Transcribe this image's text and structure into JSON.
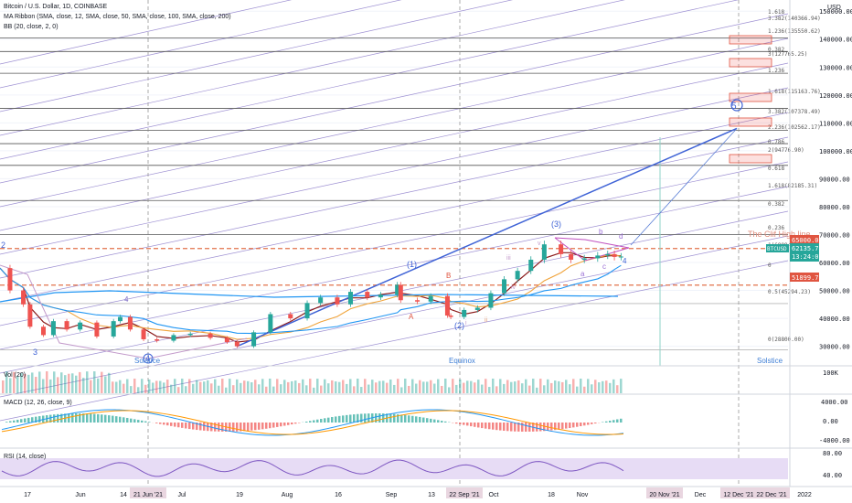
{
  "header": {
    "symbol_title": "Bitcoin / U.S. Dollar, 1D, COINBASE",
    "ma_ribbon": "MA Ribbon (SMA, close, 12, SMA, close, 50, SMA, close, 100, SMA, close, 200)",
    "bb": "BB (20, close, 2, 0)"
  },
  "currency_label": "USD",
  "price_badges": {
    "level_65000": "65000.00",
    "current_price": "62135.78",
    "current_symbol": "BTCUSD",
    "countdown": "13:24:07",
    "level_51899": "51899.78"
  },
  "annotations": {
    "cliff_high_line": "The Clif High line",
    "solstice_left": "Solstice",
    "equinox": "Equinox",
    "solstice_right": "Solstice"
  },
  "elliott_labels": {
    "w1": "(1)",
    "w2": "(2)",
    "w3": "(3)",
    "w4": "4",
    "w5": "5",
    "wA": "A",
    "wB": "B",
    "w2_left": "2",
    "w3_left": "3",
    "w4_left": "4",
    "a": "a",
    "b": "b",
    "c": "c",
    "d": "d",
    "d4": "4",
    "i": "i",
    "ii": "ii",
    "iii": "iii",
    "iv": "iv",
    "v": "v"
  },
  "indicators": {
    "vol": "Vol (20)",
    "vol_axis": "100K",
    "macd": "MACD (12, 26, close, 9)",
    "macd_ticks": [
      "4000.00",
      "0.00",
      "-4000.00"
    ],
    "rsi": "RSI (14, close)",
    "rsi_ticks": [
      "80.00",
      "40.00"
    ]
  },
  "fib_labels": [
    "1.618",
    "3.382(140366.94)",
    "1.236(135550.62)",
    "0.382",
    "3(127765.25)",
    "1.236",
    "1.618(115163.76)",
    "3.382(107378.49)",
    "2.236(102562.17)",
    "0.786",
    "2(94776.90)",
    "0.618",
    "1.618(82185.31)",
    "0.382",
    "0.236",
    "1(69994.51)",
    "0",
    "0.5(45294.23)",
    "0(28800.00)"
  ],
  "x_axis_labels": [
    "17",
    "Jun",
    "14",
    "21 Jun '21",
    "Jul",
    "19",
    "Aug",
    "16",
    "Sep",
    "13",
    "22 Sep '21",
    "Oct",
    "18",
    "Nov",
    "20 Nov '21",
    "Dec",
    "12 Dec '21",
    "22 Dec '21",
    "2022"
  ],
  "colors": {
    "candle_up": "#26a69a",
    "candle_down": "#ef5350",
    "fib_line": "#7e6cc4",
    "trend_blue": "#3f63d6",
    "price_badge": "#26a69a",
    "level_badge": "#e05541",
    "rsi_band": "#e7dcf5"
  },
  "chart_data": {
    "type": "line",
    "title": "Bitcoin / U.S. Dollar, 1D, COINBASE",
    "xlabel": "",
    "ylabel": "USD",
    "ylim": [
      23000,
      154000
    ],
    "y_ticks": [
      30000,
      40000,
      50000,
      60000,
      65000,
      70000,
      80000,
      90000,
      100000,
      110000,
      120000,
      130000,
      140000,
      150000
    ],
    "grid": true,
    "x_start": "2021-05-10",
    "x_end": "2022-01-01",
    "series": [
      {
        "values": [
          [
            "2021-05-10",
            58000
          ],
          [
            "2021-05-13",
            50000
          ],
          [
            "2021-05-17",
            45000
          ],
          [
            "2021-05-19",
            37000
          ],
          [
            "2021-05-23",
            34000
          ],
          [
            "2021-05-26",
            39000
          ],
          [
            "2021-05-30",
            36000
          ],
          [
            "2021-06-03",
            38500
          ],
          [
            "2021-06-08",
            33500
          ],
          [
            "2021-06-13",
            39000
          ],
          [
            "2021-06-15",
            40500
          ],
          [
            "2021-06-18",
            36000
          ],
          [
            "2021-06-22",
            32500
          ],
          [
            "2021-06-26",
            32000
          ],
          [
            "2021-07-01",
            34000
          ],
          [
            "2021-07-06",
            34500
          ],
          [
            "2021-07-12",
            33000
          ],
          [
            "2021-07-17",
            31500
          ],
          [
            "2021-07-20",
            30000
          ],
          [
            "2021-07-25",
            35000
          ],
          [
            "2021-07-30",
            41500
          ],
          [
            "2021-08-05",
            40000
          ],
          [
            "2021-08-10",
            45500
          ],
          [
            "2021-08-14",
            47500
          ],
          [
            "2021-08-19",
            45000
          ],
          [
            "2021-08-23",
            49500
          ],
          [
            "2021-08-28",
            47500
          ],
          [
            "2021-09-01",
            48500
          ],
          [
            "2021-09-06",
            52000
          ],
          [
            "2021-09-07",
            46500
          ],
          [
            "2021-09-12",
            46000
          ],
          [
            "2021-09-16",
            48000
          ],
          [
            "2021-09-21",
            41000
          ],
          [
            "2021-09-22",
            40500
          ],
          [
            "2021-09-26",
            43000
          ],
          [
            "2021-09-30",
            43800
          ],
          [
            "2021-10-04",
            49000
          ],
          [
            "2021-10-08",
            54000
          ],
          [
            "2021-10-12",
            57000
          ],
          [
            "2021-10-16",
            61000
          ],
          [
            "2021-10-20",
            66500
          ],
          [
            "2021-10-25",
            63000
          ],
          [
            "2021-10-28",
            61000
          ],
          [
            "2021-11-01",
            61500
          ],
          [
            "2021-11-05",
            62500
          ],
          [
            "2021-11-08",
            63000
          ],
          [
            "2021-11-10",
            62000
          ],
          [
            "2021-11-12",
            62135.78
          ]
        ]
      }
    ],
    "horizontal_levels": [
      {
        "label": "The Clif High line",
        "value": 65000
      },
      {
        "label": "0.5(45294.23)",
        "value": 45294.23
      },
      {
        "label": "0(28800.00)",
        "value": 28800
      },
      {
        "label": "51899.78",
        "value": 51899.78
      }
    ],
    "fib_levels": [
      {
        "label": "3.382(140366.94)",
        "value": 140366.94
      },
      {
        "label": "1.236(135550.62)",
        "value": 135550.62
      },
      {
        "label": "3(127765.25)",
        "value": 127765.25
      },
      {
        "label": "1.618(115163.76)",
        "value": 115163.76
      },
      {
        "label": "3.382(107378.49)",
        "value": 107378.49
      },
      {
        "label": "2.236(102562.17)",
        "value": 102562.17
      },
      {
        "label": "2(94776.90)",
        "value": 94776.9
      },
      {
        "label": "1.618(82185.31)",
        "value": 82185.31
      },
      {
        "label": "1(69994.51)",
        "value": 69994.51
      }
    ],
    "projection_target": {
      "label": "5",
      "date": "2021-12-22",
      "value": 108000
    }
  }
}
